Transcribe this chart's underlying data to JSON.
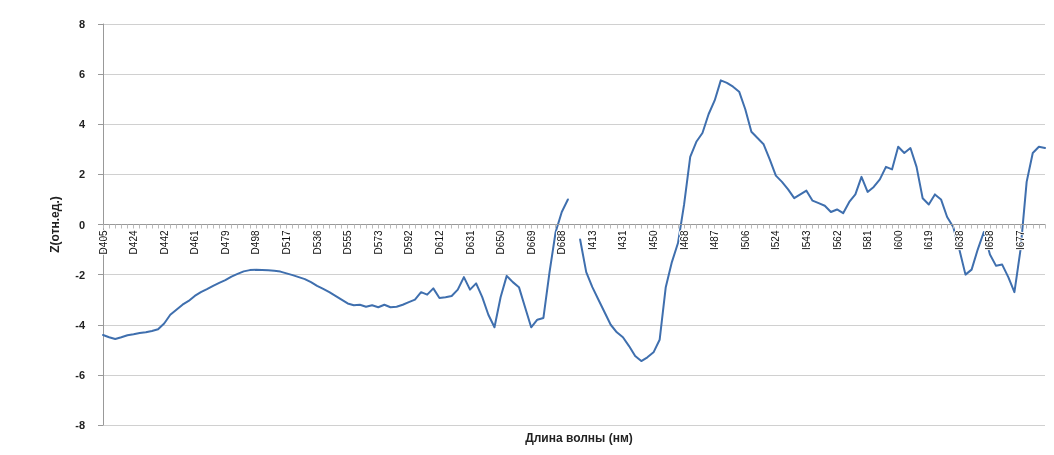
{
  "chart_data": {
    "type": "line",
    "xlabel": "Длина волны (нм)",
    "ylabel": "Z(отн.ед.)",
    "categories": [
      "D405",
      null,
      null,
      null,
      null,
      "D424",
      null,
      null,
      null,
      null,
      "D442",
      null,
      null,
      null,
      null,
      "D461",
      null,
      null,
      null,
      null,
      "D479",
      null,
      null,
      null,
      null,
      "D498",
      null,
      null,
      null,
      null,
      "D517",
      null,
      null,
      null,
      null,
      "D536",
      null,
      null,
      null,
      null,
      "D555",
      null,
      null,
      null,
      null,
      "D573",
      null,
      null,
      null,
      null,
      "D592",
      null,
      null,
      null,
      null,
      "D612",
      null,
      null,
      null,
      null,
      "D631",
      null,
      null,
      null,
      null,
      "D650",
      null,
      null,
      null,
      null,
      "D669",
      null,
      null,
      null,
      null,
      "D688",
      null,
      null,
      null,
      null,
      "I413",
      null,
      null,
      null,
      null,
      "I431",
      null,
      null,
      null,
      null,
      "I450",
      null,
      null,
      null,
      null,
      "I468",
      null,
      null,
      null,
      null,
      "I487",
      null,
      null,
      null,
      null,
      "I506",
      null,
      null,
      null,
      null,
      "I524",
      null,
      null,
      null,
      null,
      "I543",
      null,
      null,
      null,
      null,
      "I562",
      null,
      null,
      null,
      null,
      "I581",
      null,
      null,
      null,
      null,
      "I600",
      null,
      null,
      null,
      null,
      "I619",
      null,
      null,
      null,
      null,
      "I638",
      null,
      null,
      null,
      null,
      "I658",
      null,
      null,
      null,
      null,
      "I677",
      null,
      null,
      null,
      null
    ],
    "series": [
      {
        "color": "#3f6fae",
        "values": [
          -4.41,
          -4.5,
          -4.57,
          -4.5,
          -4.42,
          -4.38,
          -4.33,
          -4.3,
          -4.25,
          -4.18,
          -3.95,
          -3.6,
          -3.4,
          -3.2,
          -3.05,
          -2.85,
          -2.7,
          -2.58,
          -2.45,
          -2.33,
          -2.22,
          -2.08,
          -1.97,
          -1.87,
          -1.82,
          -1.81,
          -1.82,
          -1.83,
          -1.85,
          -1.88,
          -1.95,
          -2.02,
          -2.1,
          -2.18,
          -2.3,
          -2.45,
          -2.57,
          -2.7,
          -2.85,
          -3.0,
          -3.15,
          -3.22,
          -3.2,
          -3.28,
          -3.22,
          -3.3,
          -3.2,
          -3.3,
          -3.28,
          -3.2,
          -3.1,
          -3.0,
          -2.7,
          -2.8,
          -2.55,
          -2.93,
          -2.9,
          -2.85,
          -2.6,
          -2.1,
          -2.6,
          -2.35,
          -2.9,
          -3.6,
          -4.1,
          -2.9,
          -2.05,
          -2.3,
          -2.5,
          -3.3,
          -4.1,
          -3.8,
          -3.73,
          -1.9,
          -0.3,
          0.5,
          1.0,
          null,
          -0.6,
          -1.9,
          -2.5,
          -3.0,
          -3.5,
          -4.0,
          -4.3,
          -4.5,
          -4.85,
          -5.25,
          -5.45,
          -5.3,
          -5.1,
          -4.6,
          -2.5,
          -1.5,
          -0.74,
          0.8,
          2.7,
          3.3,
          3.65,
          4.4,
          4.95,
          5.75,
          5.65,
          5.5,
          5.3,
          4.6,
          3.7,
          3.45,
          3.2,
          2.6,
          1.95,
          1.7,
          1.4,
          1.05,
          1.2,
          1.35,
          0.95,
          0.85,
          0.75,
          0.5,
          0.6,
          0.45,
          0.9,
          1.2,
          1.9,
          1.3,
          1.5,
          1.8,
          2.3,
          2.2,
          3.1,
          2.85,
          3.05,
          2.3,
          1.05,
          0.8,
          1.2,
          1.0,
          0.3,
          -0.1,
          -1.0,
          -2.0,
          -1.8,
          -1.0,
          -0.3,
          -1.2,
          -1.65,
          -1.6,
          -2.1,
          -2.7,
          -1.0,
          1.7,
          2.85,
          3.1,
          3.05
        ]
      }
    ],
    "ylim": [
      -8,
      8
    ],
    "yticks": [
      -8,
      -6,
      -4,
      -2,
      0,
      2,
      4,
      6,
      8
    ],
    "grid": "y",
    "marker": "none",
    "line_style": "solid"
  }
}
